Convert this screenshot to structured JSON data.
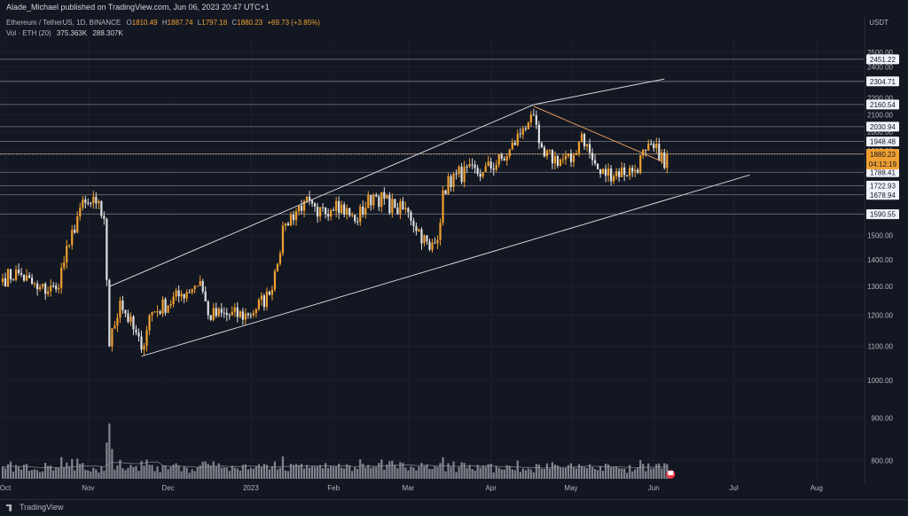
{
  "header": {
    "published": "Alade_Michael published on TradingView.com, Jun 06, 2023 20:47 UTC+1",
    "symbol": "Ethereum / TetherUS, 1D, BINANCE",
    "ohlc": [
      {
        "label": "O",
        "value": "1810.49"
      },
      {
        "label": "H",
        "value": "1887.74"
      },
      {
        "label": "L",
        "value": "1797.18"
      },
      {
        "label": "C",
        "value": "1880.23"
      }
    ],
    "change": "+69.73 (+3.85%)",
    "volume_label": "Vol · ETH (20)",
    "volume_value": "375.363K",
    "volume_ma": "288.307K",
    "currency": "USDT"
  },
  "footer": {
    "brand": "TradingView"
  },
  "colors": {
    "background": "#131722",
    "up_candle": "#f0a030",
    "down_candle": "#e0e0e0",
    "level_line": "#787b86",
    "price_line": "#f0a030",
    "trend_line": "#d1d4dc",
    "volume": "#9598a1",
    "volume_ma": "#9598a1"
  },
  "chart_data": {
    "type": "candlestick",
    "symbol": "Ethereum / TetherUS",
    "interval": "1D",
    "exchange": "BINANCE",
    "y_scale": "log",
    "ylim": [
      760,
      2620
    ],
    "y_ticks": [
      800,
      900,
      1000,
      1100,
      1200,
      1300,
      1400,
      1500,
      1600,
      1700,
      1800,
      1900,
      2000,
      2100,
      2200,
      2300,
      2400,
      2500
    ],
    "x_ticks": [
      {
        "label": "Oct",
        "date": "2022-10-01"
      },
      {
        "label": "Nov",
        "date": "2022-11-01"
      },
      {
        "label": "Dec",
        "date": "2022-12-01"
      },
      {
        "label": "2023",
        "date": "2023-01-01"
      },
      {
        "label": "Feb",
        "date": "2023-02-01"
      },
      {
        "label": "Mar",
        "date": "2023-03-01"
      },
      {
        "label": "Apr",
        "date": "2023-04-01"
      },
      {
        "label": "May",
        "date": "2023-05-01"
      },
      {
        "label": "Jun",
        "date": "2023-06-01"
      },
      {
        "label": "Jul",
        "date": "2023-07-01"
      },
      {
        "label": "Aug",
        "date": "2023-08-01"
      }
    ],
    "x_range": [
      "2022-09-29",
      "2023-08-19"
    ],
    "start_date": "2022-09-30",
    "last_price": "1880.23",
    "countdown": "04:12:19",
    "horizontal_levels": [
      2451.22,
      2304.71,
      2160.54,
      2030.94,
      1948.48,
      1883.0,
      1788.41,
      1722.93,
      1678.94,
      1590.55
    ],
    "trend_lines": [
      {
        "from": {
          "date": "2022-11-09",
          "price": 1300
        },
        "to": {
          "date": "2023-04-17",
          "price": 2160
        },
        "color": "white"
      },
      {
        "from": {
          "date": "2023-04-17",
          "price": 2160
        },
        "to": {
          "date": "2023-06-05",
          "price": 2320
        },
        "color": "white"
      },
      {
        "from": {
          "date": "2022-11-21",
          "price": 1070
        },
        "to": {
          "date": "2023-07-07",
          "price": 1775
        },
        "color": "white"
      },
      {
        "from": {
          "date": "2023-04-17",
          "price": 2150
        },
        "to": {
          "date": "2023-06-06",
          "price": 1832
        },
        "color": "orange"
      }
    ],
    "close_anchors": [
      {
        "date": "2022-09-30",
        "close": 1330
      },
      {
        "date": "2022-10-06",
        "close": 1350
      },
      {
        "date": "2022-10-13",
        "close": 1290
      },
      {
        "date": "2022-10-20",
        "close": 1290
      },
      {
        "date": "2022-10-25",
        "close": 1460
      },
      {
        "date": "2022-10-29",
        "close": 1620
      },
      {
        "date": "2022-11-04",
        "close": 1640
      },
      {
        "date": "2022-11-07",
        "close": 1570
      },
      {
        "date": "2022-11-09",
        "close": 1100
      },
      {
        "date": "2022-11-13",
        "close": 1250
      },
      {
        "date": "2022-11-21",
        "close": 1090
      },
      {
        "date": "2022-11-24",
        "close": 1200
      },
      {
        "date": "2022-12-05",
        "close": 1265
      },
      {
        "date": "2022-12-13",
        "close": 1320
      },
      {
        "date": "2022-12-16",
        "close": 1200
      },
      {
        "date": "2022-12-31",
        "close": 1200
      },
      {
        "date": "2023-01-08",
        "close": 1270
      },
      {
        "date": "2023-01-14",
        "close": 1550
      },
      {
        "date": "2023-01-21",
        "close": 1650
      },
      {
        "date": "2023-01-26",
        "close": 1580
      },
      {
        "date": "2023-02-02",
        "close": 1650
      },
      {
        "date": "2023-02-09",
        "close": 1560
      },
      {
        "date": "2023-02-16",
        "close": 1680
      },
      {
        "date": "2023-02-24",
        "close": 1620
      },
      {
        "date": "2023-03-01",
        "close": 1600
      },
      {
        "date": "2023-03-09",
        "close": 1440
      },
      {
        "date": "2023-03-12",
        "close": 1480
      },
      {
        "date": "2023-03-14",
        "close": 1700
      },
      {
        "date": "2023-03-19",
        "close": 1780
      },
      {
        "date": "2023-03-29",
        "close": 1790
      },
      {
        "date": "2023-04-07",
        "close": 1870
      },
      {
        "date": "2023-04-13",
        "close": 2020
      },
      {
        "date": "2023-04-16",
        "close": 2100
      },
      {
        "date": "2023-04-19",
        "close": 1940
      },
      {
        "date": "2023-04-21",
        "close": 1870
      },
      {
        "date": "2023-05-01",
        "close": 1840
      },
      {
        "date": "2023-05-05",
        "close": 1990
      },
      {
        "date": "2023-05-09",
        "close": 1850
      },
      {
        "date": "2023-05-12",
        "close": 1780
      },
      {
        "date": "2023-05-25",
        "close": 1800
      },
      {
        "date": "2023-05-29",
        "close": 1900
      },
      {
        "date": "2023-06-04",
        "close": 1890
      },
      {
        "date": "2023-06-05",
        "close": 1810
      },
      {
        "date": "2023-06-06",
        "close": 1880.23
      }
    ]
  }
}
